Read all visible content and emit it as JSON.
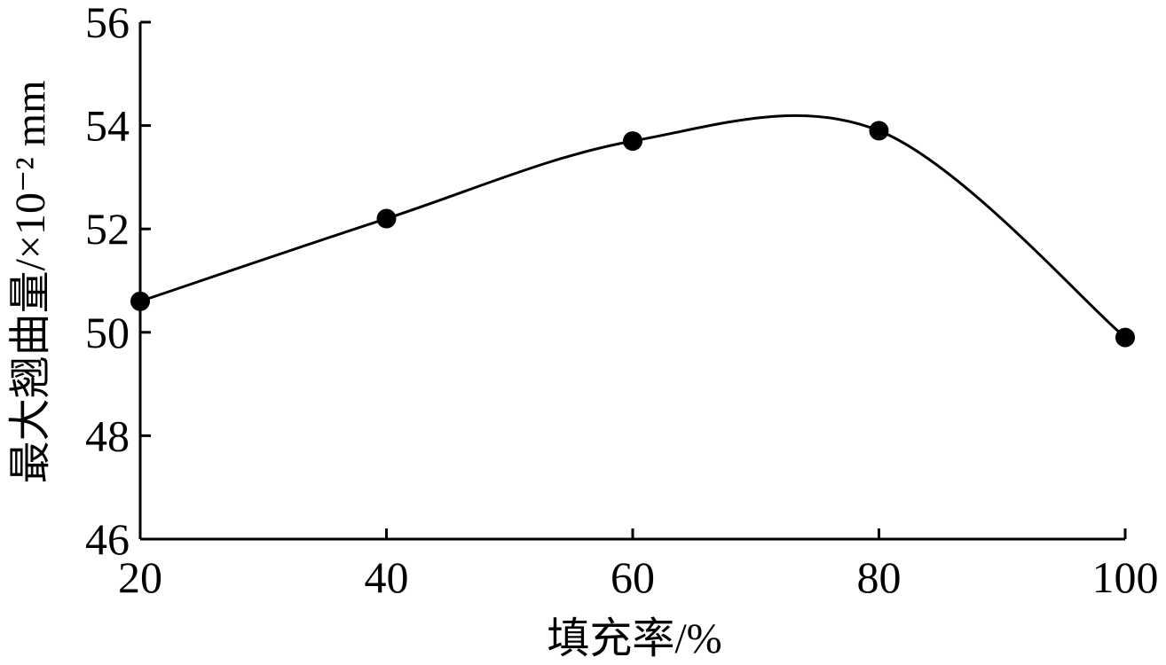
{
  "chart_data": {
    "type": "line",
    "x": [
      20,
      40,
      60,
      80,
      100
    ],
    "values": [
      50.6,
      52.2,
      53.7,
      53.9,
      49.9
    ],
    "color": "#000000",
    "xlim": [
      20,
      100
    ],
    "xticks": [
      20,
      40,
      60,
      80,
      100
    ],
    "ylim": [
      46,
      56
    ],
    "yticks": [
      46,
      48,
      50,
      52,
      54,
      56
    ],
    "x_label": "填充率/%",
    "y_label": "最大翘曲量/×10⁻² mm",
    "smooth": true,
    "markers": true
  }
}
